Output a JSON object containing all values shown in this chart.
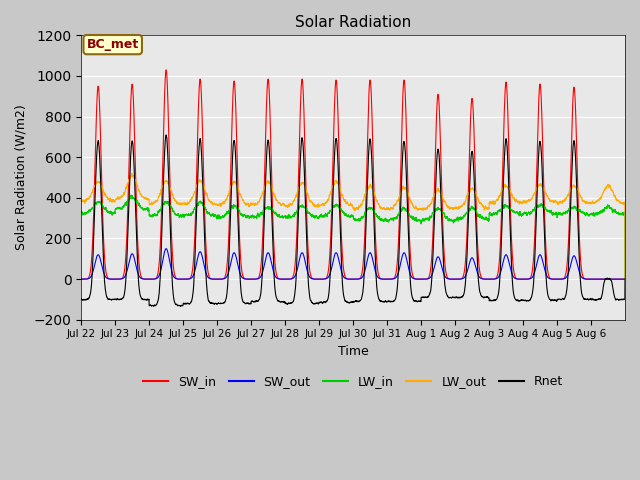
{
  "title": "Solar Radiation",
  "ylabel": "Solar Radiation (W/m2)",
  "xlabel": "Time",
  "ylim": [
    -200,
    1200
  ],
  "annotation": "BC_met",
  "series_colors": {
    "SW_in": "#ff0000",
    "SW_out": "#0000ff",
    "LW_in": "#00cc00",
    "LW_out": "#ffaa00",
    "Rnet": "#000000"
  },
  "x_tick_labels": [
    "Jul 22",
    "Jul 23",
    "Jul 24",
    "Jul 25",
    "Jul 26",
    "Jul 27",
    "Jul 28",
    "Jul 29",
    "Jul 30",
    "Jul 31",
    "Aug 1",
    "Aug 2",
    "Aug 3",
    "Aug 4",
    "Aug 5",
    "Aug 6"
  ],
  "n_days": 16,
  "sw_in_peaks": [
    950,
    960,
    1030,
    985,
    975,
    985,
    985,
    980,
    980,
    980,
    910,
    890,
    970,
    960,
    945,
    0
  ],
  "sw_out_peaks": [
    120,
    125,
    150,
    135,
    130,
    130,
    130,
    130,
    130,
    130,
    110,
    105,
    120,
    120,
    115,
    0
  ],
  "lw_in_baseline": [
    325,
    345,
    310,
    310,
    305,
    305,
    305,
    310,
    290,
    290,
    290,
    295,
    320,
    325,
    320,
    320
  ],
  "lw_in_day_bump": [
    55,
    60,
    70,
    65,
    55,
    50,
    55,
    55,
    60,
    55,
    60,
    55,
    40,
    40,
    35,
    35
  ],
  "lw_out_baseline": [
    385,
    395,
    370,
    370,
    365,
    365,
    360,
    365,
    345,
    345,
    345,
    350,
    375,
    380,
    375,
    375
  ],
  "lw_out_day_bump": [
    95,
    115,
    115,
    115,
    115,
    115,
    115,
    115,
    115,
    105,
    95,
    95,
    85,
    85,
    85,
    85
  ],
  "rnet_peaks": [
    680,
    680,
    710,
    690,
    685,
    685,
    695,
    695,
    690,
    680,
    640,
    630,
    690,
    680,
    680,
    0
  ],
  "rnet_night": [
    -100,
    -100,
    -130,
    -120,
    -120,
    -110,
    -120,
    -115,
    -110,
    -110,
    -90,
    -90,
    -105,
    -105,
    -100,
    -100
  ]
}
